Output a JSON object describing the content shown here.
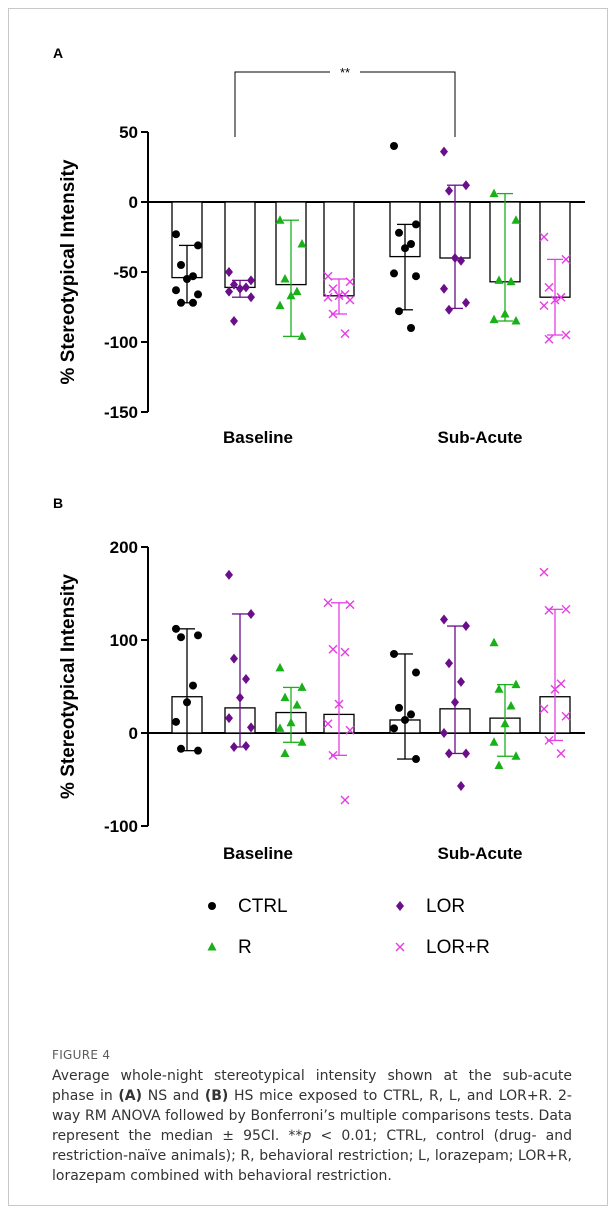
{
  "figure_label": "FIGURE 4",
  "caption_html": "Average whole-night stereotypical intensity shown at the sub-acute phase in <b>(A)</b> NS and <b>(B)</b> HS mice exposed to CTRL, R, L, and LOR+R. 2-way RM ANOVA followed by Bonferroni’s multiple comparisons tests. Data represent the median ± 95CI. **<i>p</i> &lt; 0.01; CTRL, control (drug- and restriction-naïve animals); R, behavioral restriction; L, lorazepam; LOR+R, lorazepam combined with behavioral restriction.",
  "legend": [
    {
      "label": "CTRL",
      "marker": "circle",
      "color": "#000000"
    },
    {
      "label": "LOR",
      "marker": "diamond",
      "color": "#6a0e8a"
    },
    {
      "label": "R",
      "marker": "triangle",
      "color": "#19b019"
    },
    {
      "label": "LOR+R",
      "marker": "x",
      "color": "#e43ee4"
    }
  ],
  "chart_data": [
    {
      "type": "bar",
      "panel": "A",
      "ylabel": "% Stereotypical Intensity",
      "ylim": [
        -150,
        50
      ],
      "yticks": [
        50,
        0,
        -50,
        -100,
        -150
      ],
      "categories": [
        "Baseline",
        "Sub-Acute"
      ],
      "significance": {
        "label": "**",
        "between": [
          "Baseline",
          "Sub-Acute"
        ]
      },
      "groups": [
        {
          "name": "CTRL",
          "marker": "circle",
          "color": "#000000",
          "medians": [
            -54,
            -39
          ],
          "ci": [
            [
              -72,
              -31
            ],
            [
              -77,
              -16
            ]
          ],
          "points": [
            [
              -23,
              -31,
              -45,
              -53,
              -55,
              -63,
              -66,
              -72,
              -72
            ],
            [
              40,
              -16,
              -22,
              -30,
              -33,
              -51,
              -53,
              -78,
              -90
            ]
          ]
        },
        {
          "name": "LOR",
          "marker": "diamond",
          "color": "#6a0e8a",
          "medians": [
            -61,
            -40
          ],
          "ci": [
            [
              -68,
              -56
            ],
            [
              -76,
              12
            ]
          ],
          "points": [
            [
              -50,
              -56,
              -59,
              -61,
              -62,
              -64,
              -68,
              -85
            ],
            [
              36,
              12,
              8,
              -42,
              -40,
              -62,
              -72,
              -77
            ]
          ]
        },
        {
          "name": "R",
          "marker": "triangle",
          "color": "#19b019",
          "medians": [
            -59,
            -57
          ],
          "ci": [
            [
              -96,
              -13
            ],
            [
              -85,
              6
            ]
          ],
          "points": [
            [
              -13,
              -30,
              -55,
              -64,
              -67,
              -74,
              -96
            ],
            [
              6,
              -13,
              -56,
              -57,
              -80,
              -84,
              -85
            ]
          ]
        },
        {
          "name": "LOR+R",
          "marker": "x",
          "color": "#e43ee4",
          "medians": [
            -67,
            -68
          ],
          "ci": [
            [
              -80,
              -55
            ],
            [
              -95,
              -41
            ]
          ],
          "points": [
            [
              -53,
              -57,
              -62,
              -66,
              -67,
              -68,
              -70,
              -80,
              -94
            ],
            [
              -25,
              -41,
              -61,
              -68,
              -70,
              -74,
              -95,
              -98
            ]
          ]
        }
      ]
    },
    {
      "type": "bar",
      "panel": "B",
      "ylabel": "% Stereotypical Intensity",
      "ylim": [
        -100,
        200
      ],
      "yticks": [
        200,
        100,
        0,
        -100
      ],
      "categories": [
        "Baseline",
        "Sub-Acute"
      ],
      "groups": [
        {
          "name": "CTRL",
          "marker": "circle",
          "color": "#000000",
          "medians": [
            39,
            14
          ],
          "ci": [
            [
              -19,
              112
            ],
            [
              -28,
              85
            ]
          ],
          "points": [
            [
              112,
              105,
              103,
              51,
              33,
              12,
              -19,
              -17
            ],
            [
              85,
              65,
              27,
              20,
              14,
              5,
              -28
            ]
          ]
        },
        {
          "name": "LOR",
          "marker": "diamond",
          "color": "#6a0e8a",
          "medians": [
            27,
            26
          ],
          "ci": [
            [
              -15,
              128
            ],
            [
              -22,
              115
            ]
          ],
          "points": [
            [
              170,
              128,
              80,
              58,
              38,
              16,
              6,
              -15,
              -14
            ],
            [
              122,
              115,
              75,
              55,
              33,
              0,
              -22,
              -22,
              -57
            ]
          ]
        },
        {
          "name": "R",
          "marker": "triangle",
          "color": "#19b019",
          "medians": [
            22,
            16
          ],
          "ci": [
            [
              -10,
              49
            ],
            [
              -25,
              52
            ]
          ],
          "points": [
            [
              70,
              49,
              38,
              30,
              11,
              5,
              -10,
              -22
            ],
            [
              97,
              52,
              47,
              29,
              10,
              -10,
              -25,
              -35
            ]
          ]
        },
        {
          "name": "LOR+R",
          "marker": "x",
          "color": "#e43ee4",
          "medians": [
            20,
            39
          ],
          "ci": [
            [
              -24,
              140
            ],
            [
              -8,
              133
            ]
          ],
          "points": [
            [
              140,
              138,
              90,
              87,
              31,
              10,
              3,
              -24,
              -72
            ],
            [
              173,
              133,
              132,
              53,
              47,
              26,
              18,
              -8,
              -22
            ]
          ]
        }
      ]
    }
  ]
}
